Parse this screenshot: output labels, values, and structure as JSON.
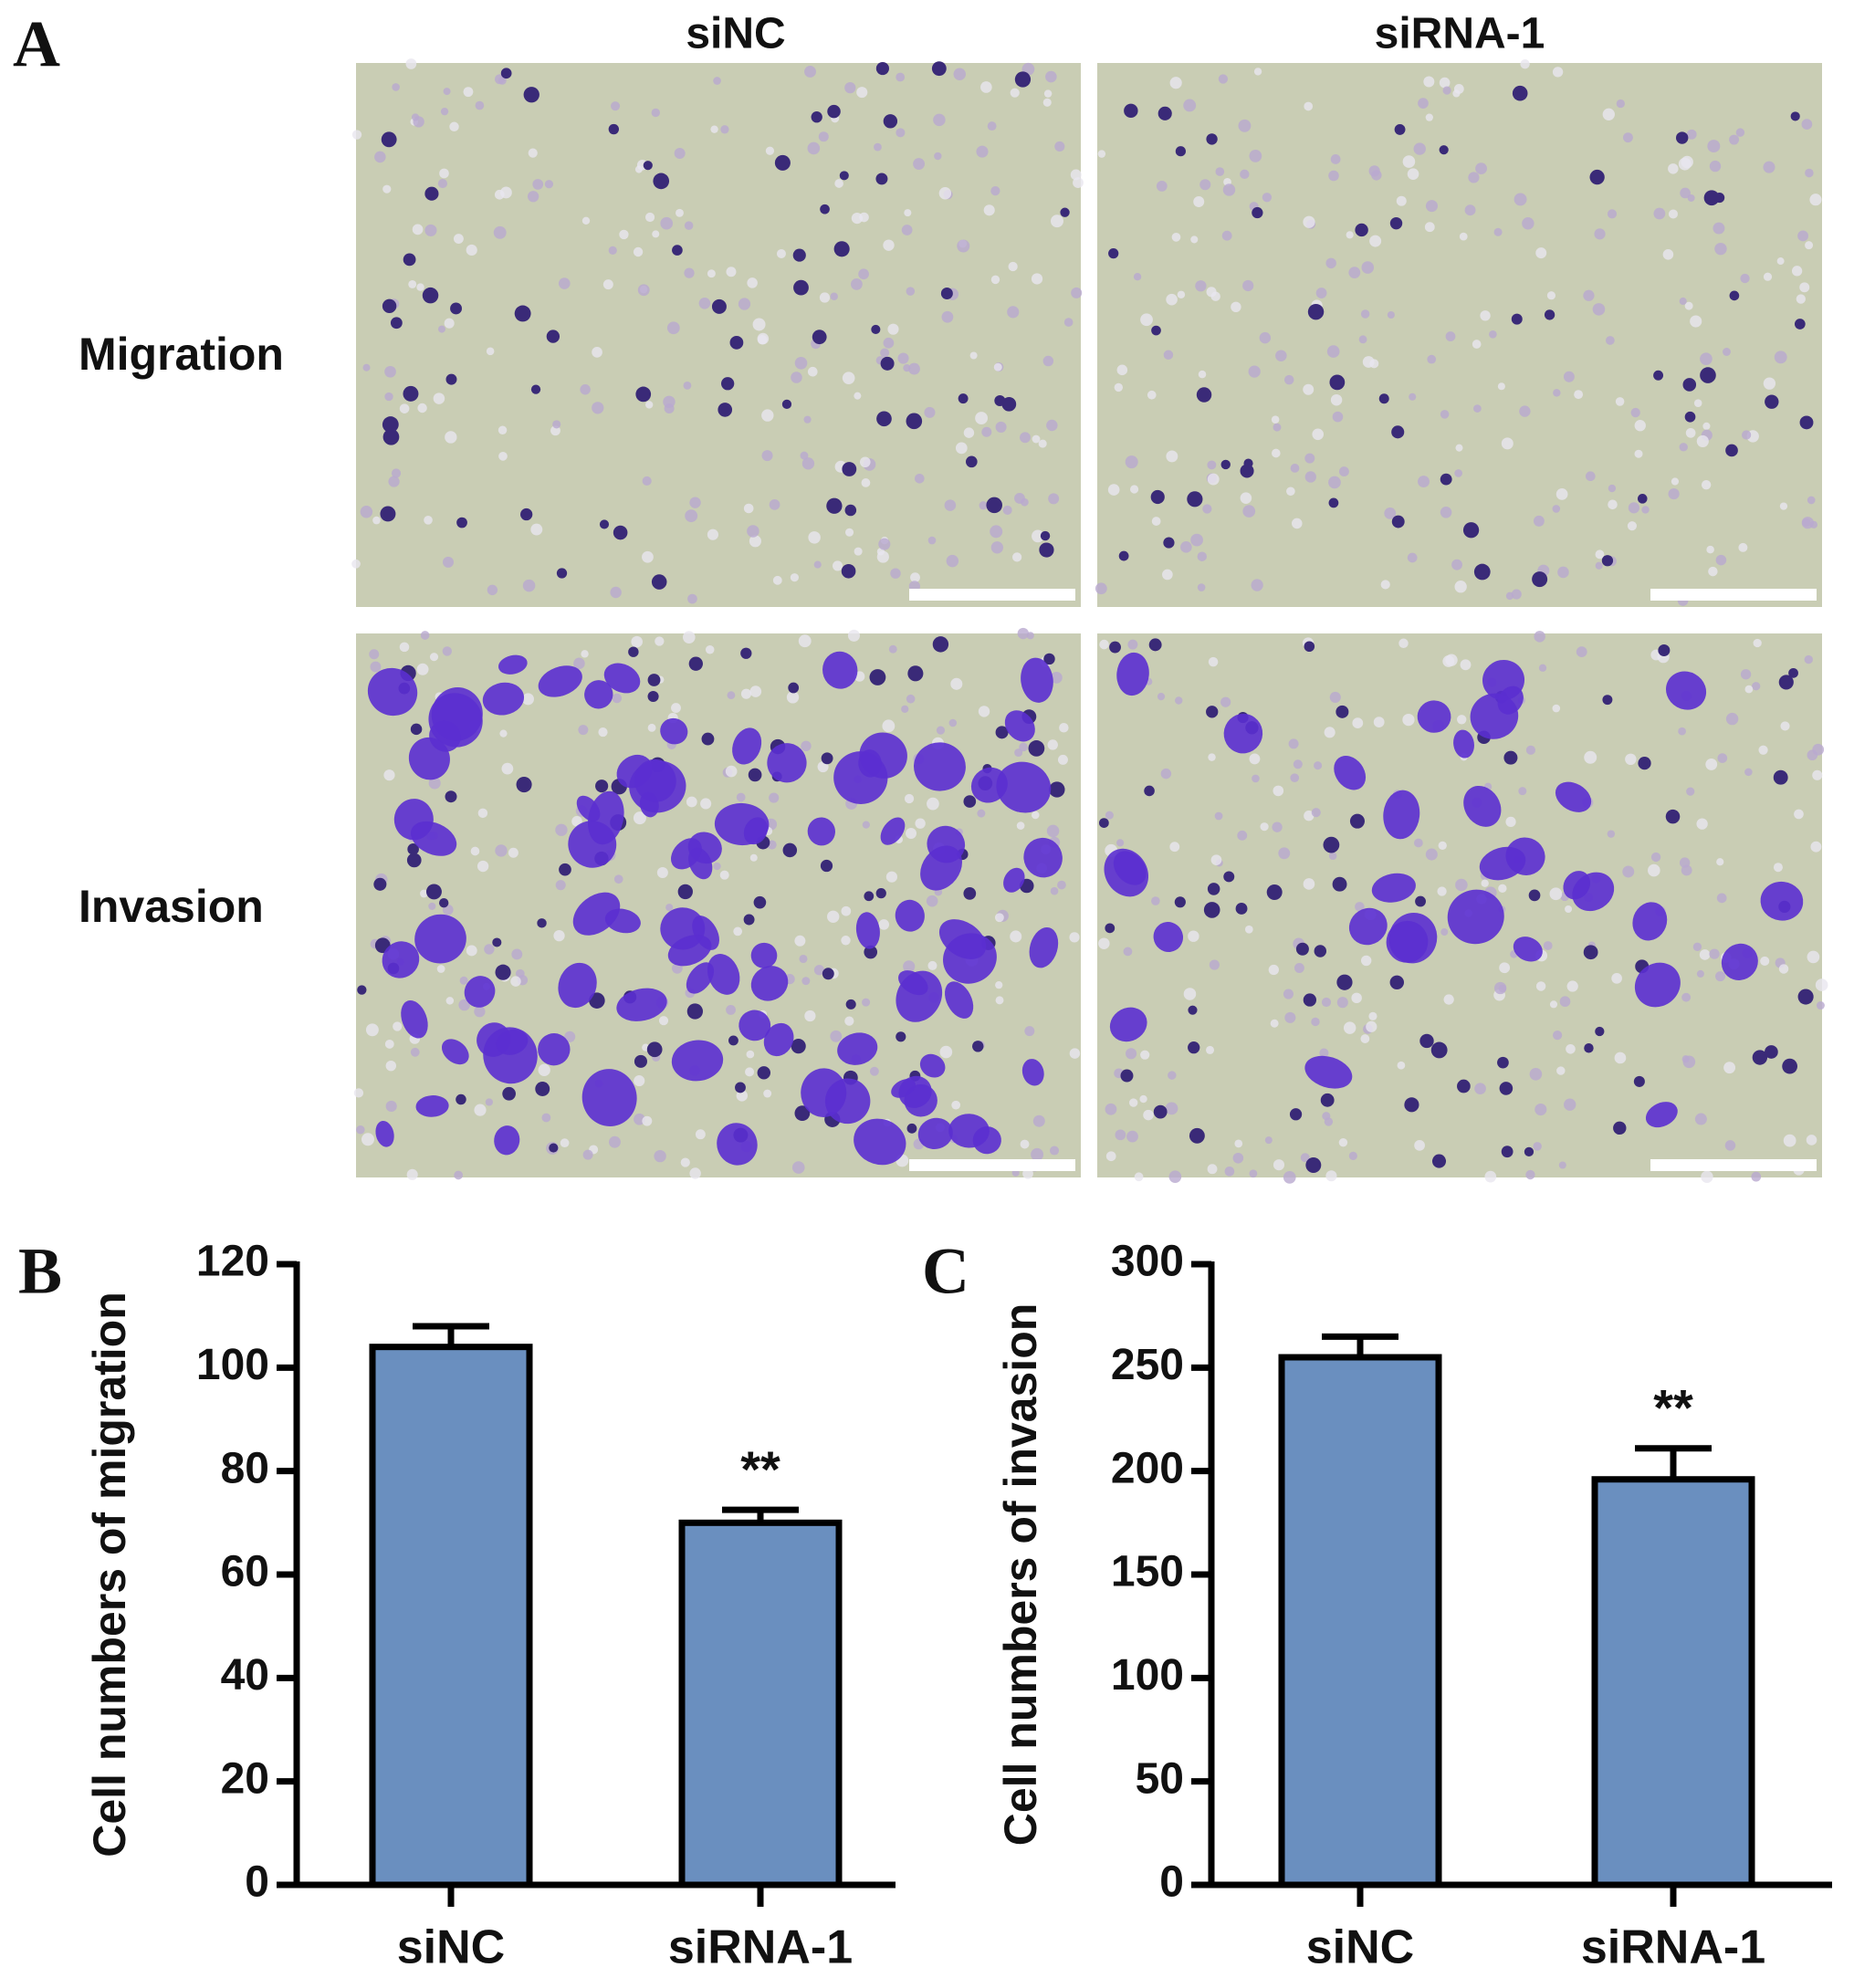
{
  "panel_a": {
    "label": "A",
    "columns": [
      "siNC",
      "siRNA-1"
    ],
    "rows": [
      "Migration",
      "Invasion"
    ]
  },
  "chart_data": [
    {
      "type": "bar",
      "panel": "B",
      "ylabel": "Cell numbers of migration",
      "categories": [
        "siNC",
        "siRNA-1"
      ],
      "values": [
        104,
        70
      ],
      "errors": [
        4,
        2.5
      ],
      "annotation": "**",
      "color": "#6a8fbf",
      "ylim": [
        0,
        120
      ],
      "yticks": [
        0,
        20,
        40,
        60,
        80,
        100,
        120
      ]
    },
    {
      "type": "bar",
      "panel": "C",
      "ylabel": "Cell numbers of invasion",
      "categories": [
        "siNC",
        "siRNA-1"
      ],
      "values": [
        255,
        196
      ],
      "errors": [
        10,
        15
      ],
      "annotation": "**",
      "color": "#6a8fbf",
      "ylim": [
        0,
        300
      ],
      "yticks": [
        0,
        50,
        100,
        150,
        200,
        250,
        300
      ]
    }
  ]
}
